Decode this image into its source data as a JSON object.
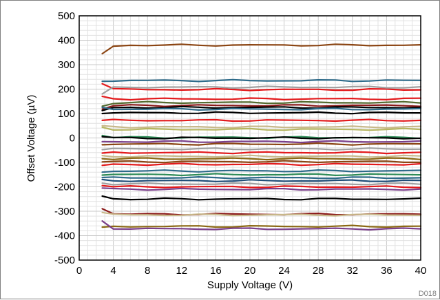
{
  "chart_data": {
    "type": "line",
    "xlabel": "Supply Voltage (V)",
    "ylabel": "Offset Voltage (µV)",
    "xlim": [
      0,
      40
    ],
    "ylim": [
      -500,
      500
    ],
    "xticks": [
      0,
      4,
      8,
      12,
      16,
      20,
      24,
      28,
      32,
      36,
      40
    ],
    "yticks": [
      -500,
      -400,
      -300,
      -200,
      -100,
      0,
      100,
      200,
      300,
      400,
      500
    ],
    "grid": true,
    "figure_code": "D018",
    "x": [
      2.7,
      4,
      6,
      8,
      10,
      12,
      14,
      16,
      18,
      20,
      22,
      24,
      26,
      28,
      30,
      32,
      34,
      36,
      38,
      40
    ],
    "series": [
      {
        "color": "#8B4513",
        "start": 345,
        "value": 380
      },
      {
        "color": "#2E6B8A",
        "start": 232,
        "value": 235
      },
      {
        "color": "#E31A1C",
        "start": 222,
        "value": 198
      },
      {
        "color": "#A0A0A0",
        "start": 180,
        "value": 208
      },
      {
        "color": "#E31A1C",
        "start": 170,
        "value": 160
      },
      {
        "color": "#556B2F",
        "start": 130,
        "value": 145
      },
      {
        "color": "#8B1A1A",
        "start": 118,
        "value": 133
      },
      {
        "color": "#000000",
        "start": 112,
        "value": 125
      },
      {
        "color": "#2E6B8A",
        "start": 125,
        "value": 118
      },
      {
        "color": "#000000",
        "start": 100,
        "value": 103
      },
      {
        "color": "#E31A1C",
        "start": 72,
        "value": 72
      },
      {
        "color": "#C8B88A",
        "start": 50,
        "value": 45
      },
      {
        "color": "#B5B560",
        "start": 44,
        "value": 35
      },
      {
        "color": "#2E8B57",
        "start": 10,
        "value": 2
      },
      {
        "color": "#000000",
        "start": 5,
        "value": 0
      },
      {
        "color": "#7B3F8A",
        "start": -15,
        "value": -15
      },
      {
        "color": "#8B4513",
        "start": -28,
        "value": -25
      },
      {
        "color": "#A0A0A0",
        "start": -48,
        "value": -45
      },
      {
        "color": "#E31A1C",
        "start": -62,
        "value": -60
      },
      {
        "color": "#C8B88A",
        "start": -72,
        "value": -75
      },
      {
        "color": "#8B6914",
        "start": -85,
        "value": -85
      },
      {
        "color": "#8B4513",
        "start": -98,
        "value": -97
      },
      {
        "color": "#E31A1C",
        "start": -112,
        "value": -108
      },
      {
        "color": "#2E6B8A",
        "start": -140,
        "value": -135
      },
      {
        "color": "#2E8B57",
        "start": -152,
        "value": -150
      },
      {
        "color": "#2E6B8A",
        "start": -162,
        "value": -163
      },
      {
        "color": "#1F4E79",
        "start": -170,
        "value": -175
      },
      {
        "color": "#A0A0A0",
        "start": -185,
        "value": -188
      },
      {
        "color": "#E31A1C",
        "start": -195,
        "value": -200
      },
      {
        "color": "#7B3F8A",
        "start": -205,
        "value": -210
      },
      {
        "color": "#000000",
        "start": -238,
        "value": -250
      },
      {
        "color": "#8B1A1A",
        "start": -290,
        "value": -312
      },
      {
        "color": "#C8B88A",
        "start": -305,
        "value": -315
      },
      {
        "color": "#8B6914",
        "start": -365,
        "value": -362
      },
      {
        "color": "#7B3F8A",
        "start": -340,
        "value": -372
      }
    ]
  }
}
